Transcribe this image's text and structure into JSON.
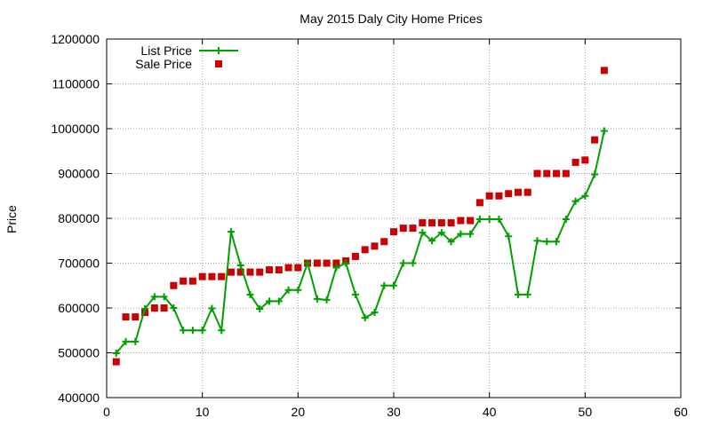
{
  "chart_data": {
    "type": "line",
    "title": "May 2015 Daly City Home Prices",
    "xlabel": "",
    "ylabel": "Price",
    "xlim": [
      0,
      60
    ],
    "ylim": [
      400000,
      1200000
    ],
    "x_ticks": [
      0,
      10,
      20,
      30,
      40,
      50,
      60
    ],
    "y_ticks": [
      400000,
      500000,
      600000,
      700000,
      800000,
      900000,
      1000000,
      1100000,
      1200000
    ],
    "grid": true,
    "legend_position": "top-left",
    "series": [
      {
        "name": "List Price",
        "style": "line-plus",
        "color": "#00a000",
        "x": [
          1,
          2,
          3,
          4,
          5,
          6,
          7,
          8,
          9,
          10,
          11,
          12,
          13,
          14,
          15,
          16,
          17,
          18,
          19,
          20,
          21,
          22,
          23,
          24,
          25,
          26,
          27,
          28,
          29,
          30,
          31,
          32,
          33,
          34,
          35,
          36,
          37,
          38,
          39,
          40,
          41,
          42,
          43,
          44,
          45,
          46,
          47,
          48,
          49,
          50,
          51,
          52
        ],
        "y": [
          499000,
          525000,
          525000,
          598000,
          625000,
          625000,
          600000,
          550000,
          550000,
          550000,
          599000,
          550000,
          770000,
          695000,
          630000,
          598000,
          615000,
          615000,
          640000,
          640000,
          700000,
          620000,
          618000,
          690000,
          700000,
          630000,
          578000,
          590000,
          650000,
          650000,
          700000,
          700000,
          768000,
          750000,
          768000,
          748000,
          765000,
          765000,
          798000,
          798000,
          798000,
          760000,
          630000,
          630000,
          750000,
          748000,
          748000,
          798000,
          838000,
          850000,
          898000,
          995000
        ]
      },
      {
        "name": "Sale Price",
        "style": "square-markers",
        "color": "#cc0000",
        "x": [
          1,
          2,
          3,
          4,
          5,
          6,
          7,
          8,
          9,
          10,
          11,
          12,
          13,
          14,
          15,
          16,
          17,
          18,
          19,
          20,
          21,
          22,
          23,
          24,
          25,
          26,
          27,
          28,
          29,
          30,
          31,
          32,
          33,
          34,
          35,
          36,
          37,
          38,
          39,
          40,
          41,
          42,
          43,
          44,
          45,
          46,
          47,
          48,
          49,
          50,
          51,
          52
        ],
        "y": [
          480000,
          580000,
          580000,
          590000,
          600000,
          600000,
          650000,
          660000,
          660000,
          670000,
          670000,
          670000,
          680000,
          680000,
          680000,
          680000,
          685000,
          685000,
          690000,
          690000,
          700000,
          700000,
          700000,
          700000,
          705000,
          715000,
          730000,
          738000,
          748000,
          770000,
          778000,
          778000,
          790000,
          790000,
          790000,
          790000,
          795000,
          795000,
          835000,
          850000,
          850000,
          855000,
          858000,
          858000,
          900000,
          900000,
          900000,
          900000,
          925000,
          930000,
          975000,
          1130000
        ]
      }
    ]
  }
}
